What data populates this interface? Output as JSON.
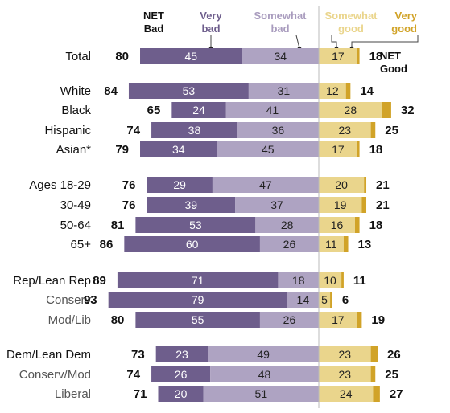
{
  "chart_data": {
    "type": "bar",
    "title": "",
    "headers": {
      "net_bad": [
        "NET",
        "Bad"
      ],
      "very_bad": [
        "Very",
        "bad"
      ],
      "somewhat_bad": [
        "Somewhat",
        "bad"
      ],
      "somewhat_good": [
        "Somewhat",
        "good"
      ],
      "very_good": [
        "Very",
        "good"
      ],
      "net_good": [
        "NET",
        "Good"
      ]
    },
    "series_names": [
      "Very bad",
      "Somewhat bad",
      "Somewhat good",
      "Very good"
    ],
    "colors": {
      "very_bad": "#6e5e8c",
      "somewhat_bad": "#aea3c2",
      "somewhat_good": "#ead58c",
      "very_good": "#d1a328",
      "divider": "#bbbbbb"
    },
    "rows": [
      {
        "label": "Total",
        "net_bad": 80,
        "very_bad": 45,
        "somewhat_bad": 34,
        "somewhat_good": 17,
        "very_good": 1,
        "net_good": 18,
        "sub": false
      },
      {
        "label": "White",
        "net_bad": 84,
        "very_bad": 53,
        "somewhat_bad": 31,
        "somewhat_good": 12,
        "very_good": 2,
        "net_good": 14,
        "sub": false
      },
      {
        "label": "Black",
        "net_bad": 65,
        "very_bad": 24,
        "somewhat_bad": 41,
        "somewhat_good": 28,
        "very_good": 4,
        "net_good": 32,
        "sub": false
      },
      {
        "label": "Hispanic",
        "net_bad": 74,
        "very_bad": 38,
        "somewhat_bad": 36,
        "somewhat_good": 23,
        "very_good": 2,
        "net_good": 25,
        "sub": false
      },
      {
        "label": "Asian*",
        "net_bad": 79,
        "very_bad": 34,
        "somewhat_bad": 45,
        "somewhat_good": 17,
        "very_good": 1,
        "net_good": 18,
        "sub": false
      },
      {
        "label": "Ages 18-29",
        "net_bad": 76,
        "very_bad": 29,
        "somewhat_bad": 47,
        "somewhat_good": 20,
        "very_good": 1,
        "net_good": 21,
        "sub": false
      },
      {
        "label": "30-49",
        "net_bad": 76,
        "very_bad": 39,
        "somewhat_bad": 37,
        "somewhat_good": 19,
        "very_good": 2,
        "net_good": 21,
        "sub": false
      },
      {
        "label": "50-64",
        "net_bad": 81,
        "very_bad": 53,
        "somewhat_bad": 28,
        "somewhat_good": 16,
        "very_good": 2,
        "net_good": 18,
        "sub": false
      },
      {
        "label": "65+",
        "net_bad": 86,
        "very_bad": 60,
        "somewhat_bad": 26,
        "somewhat_good": 11,
        "very_good": 2,
        "net_good": 13,
        "sub": false
      },
      {
        "label": "Rep/Lean Rep",
        "net_bad": 89,
        "very_bad": 71,
        "somewhat_bad": 18,
        "somewhat_good": 10,
        "very_good": 1,
        "net_good": 11,
        "sub": false
      },
      {
        "label": "Conserv",
        "net_bad": 93,
        "very_bad": 79,
        "somewhat_bad": 14,
        "somewhat_good": 5,
        "very_good": 1,
        "net_good": 6,
        "sub": true
      },
      {
        "label": "Mod/Lib",
        "net_bad": 80,
        "very_bad": 55,
        "somewhat_bad": 26,
        "somewhat_good": 17,
        "very_good": 2,
        "net_good": 19,
        "sub": true
      },
      {
        "label": "Dem/Lean Dem",
        "net_bad": 73,
        "very_bad": 23,
        "somewhat_bad": 49,
        "somewhat_good": 23,
        "very_good": 3,
        "net_good": 26,
        "sub": false
      },
      {
        "label": "Conserv/Mod",
        "net_bad": 74,
        "very_bad": 26,
        "somewhat_bad": 48,
        "somewhat_good": 23,
        "very_good": 2,
        "net_good": 25,
        "sub": true
      },
      {
        "label": "Liberal",
        "net_bad": 71,
        "very_bad": 20,
        "somewhat_bad": 51,
        "somewhat_good": 24,
        "very_good": 3,
        "net_good": 27,
        "sub": true
      }
    ]
  }
}
